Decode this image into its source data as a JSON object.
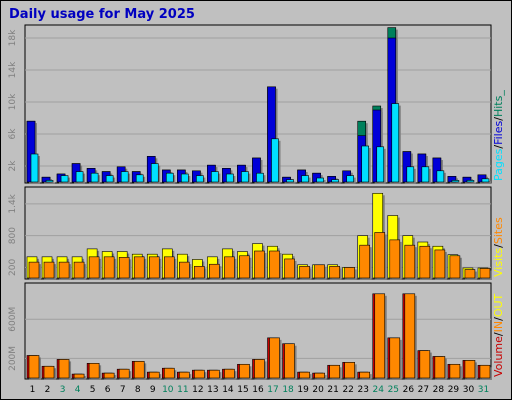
{
  "title": "Daily usage for May 2025",
  "colors": {
    "hits": "#00805c",
    "files": "#0000d8",
    "pages": "#00e0ff",
    "visits": "#ffff00",
    "sites": "#ff8800",
    "volume": "#c80000",
    "in": "#ff8800",
    "out": "#ffff00",
    "weekday_label": "#000000",
    "weekend_label": "#00805c",
    "title": "#0000c0"
  },
  "legends": {
    "top": [
      "Pages",
      "/",
      "Files",
      "/",
      "Hits",
      "_"
    ],
    "middle": [
      "Visits",
      "/",
      "Sites"
    ],
    "bottom": [
      "Volume",
      "/",
      "IN",
      "/",
      "OUT"
    ]
  },
  "chart_data": [
    {
      "type": "bar",
      "panel": "hits-files-pages",
      "categories": [
        "1",
        "2",
        "3",
        "4",
        "5",
        "6",
        "7",
        "8",
        "9",
        "10",
        "11",
        "12",
        "13",
        "14",
        "15",
        "16",
        "17",
        "18",
        "19",
        "20",
        "21",
        "22",
        "23",
        "24",
        "25",
        "26",
        "27",
        "28",
        "29",
        "30",
        "31"
      ],
      "weekend_days": [
        "3",
        "4",
        "10",
        "11",
        "17",
        "18",
        "24",
        "25",
        "31"
      ],
      "ylim": [
        0,
        19500
      ],
      "y_ticks": [
        {
          "label": "2k",
          "value": 2000
        },
        {
          "label": "6k",
          "value": 6000
        },
        {
          "label": "10k",
          "value": 10000
        },
        {
          "label": "14k",
          "value": 14000
        },
        {
          "label": "18k",
          "value": 18000
        }
      ],
      "series": [
        {
          "name": "Hits",
          "values": [
            7600,
            600,
            1000,
            2300,
            1700,
            1300,
            1900,
            1300,
            3200,
            1500,
            1500,
            1400,
            2100,
            1700,
            2100,
            3000,
            11900,
            600,
            1500,
            1100,
            700,
            1400,
            7600,
            9500,
            19300,
            3800,
            3500,
            3000,
            700,
            600,
            900
          ]
        },
        {
          "name": "Files",
          "values": [
            7600,
            600,
            1000,
            2300,
            1700,
            1300,
            1900,
            1300,
            3200,
            1500,
            1500,
            1400,
            2100,
            1700,
            2100,
            3000,
            11900,
            600,
            1500,
            1100,
            700,
            1400,
            5800,
            9000,
            18000,
            3800,
            3500,
            3000,
            700,
            600,
            900
          ]
        },
        {
          "name": "Pages",
          "values": [
            3500,
            200,
            800,
            1300,
            1100,
            800,
            1300,
            900,
            2300,
            1100,
            1000,
            800,
            1300,
            1000,
            1300,
            1100,
            5400,
            300,
            800,
            500,
            300,
            800,
            4500,
            4400,
            9800,
            1900,
            1900,
            1400,
            200,
            200,
            400
          ]
        }
      ]
    },
    {
      "type": "bar",
      "panel": "visits-sites",
      "categories": [
        "1",
        "2",
        "3",
        "4",
        "5",
        "6",
        "7",
        "8",
        "9",
        "10",
        "11",
        "12",
        "13",
        "14",
        "15",
        "16",
        "17",
        "18",
        "19",
        "20",
        "21",
        "22",
        "23",
        "24",
        "25",
        "26",
        "27",
        "28",
        "29",
        "30",
        "31"
      ],
      "ylim": [
        0,
        1700
      ],
      "y_ticks": [
        {
          "label": "200",
          "value": 200
        },
        {
          "label": "800",
          "value": 800
        },
        {
          "label": "1.4k",
          "value": 1400
        }
      ],
      "series": [
        {
          "name": "Visits",
          "values": [
            400,
            400,
            400,
            400,
            550,
            500,
            500,
            450,
            450,
            550,
            450,
            350,
            400,
            550,
            500,
            650,
            600,
            450,
            250,
            250,
            250,
            200,
            800,
            1600,
            1180,
            800,
            680,
            600,
            440,
            190,
            190
          ]
        },
        {
          "name": "Sites",
          "values": [
            300,
            300,
            300,
            300,
            400,
            400,
            390,
            400,
            400,
            400,
            300,
            220,
            260,
            400,
            420,
            510,
            510,
            360,
            220,
            250,
            220,
            200,
            620,
            860,
            720,
            620,
            600,
            530,
            420,
            160,
            180
          ]
        }
      ]
    },
    {
      "type": "bar",
      "panel": "volume",
      "categories": [
        "1",
        "2",
        "3",
        "4",
        "5",
        "6",
        "7",
        "8",
        "9",
        "10",
        "11",
        "12",
        "13",
        "14",
        "15",
        "16",
        "17",
        "18",
        "19",
        "20",
        "21",
        "22",
        "23",
        "24",
        "25",
        "26",
        "27",
        "28",
        "29",
        "30",
        "31"
      ],
      "ylim": [
        0,
        960
      ],
      "y_ticks": [
        {
          "label": "200M",
          "value": 200
        },
        {
          "label": "600M",
          "value": 600
        }
      ],
      "series": [
        {
          "name": "Volume",
          "values": [
            230,
            120,
            190,
            40,
            150,
            50,
            90,
            170,
            60,
            100,
            60,
            80,
            80,
            90,
            140,
            190,
            410,
            350,
            60,
            50,
            130,
            160,
            60,
            860,
            410,
            860,
            280,
            220,
            140,
            180,
            130
          ]
        },
        {
          "name": "IN",
          "values": [
            230,
            120,
            190,
            40,
            150,
            50,
            90,
            170,
            60,
            100,
            60,
            80,
            80,
            90,
            140,
            190,
            410,
            350,
            60,
            50,
            130,
            160,
            60,
            860,
            410,
            860,
            280,
            220,
            140,
            180,
            130
          ]
        }
      ]
    }
  ]
}
